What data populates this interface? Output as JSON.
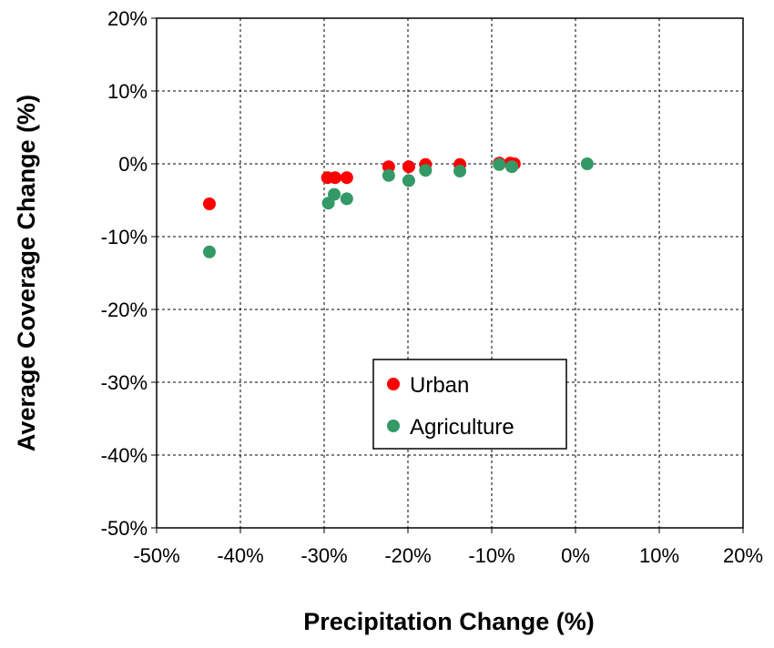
{
  "chart_data": {
    "type": "scatter",
    "x_label": "Precipitation Change (%)",
    "y_label": "Average Coverage Change (%)",
    "xlim": [
      -50,
      20
    ],
    "ylim": [
      -50,
      20
    ],
    "xticks": [
      {
        "value": -50,
        "label": "-50%"
      },
      {
        "value": -40,
        "label": "-40%"
      },
      {
        "value": -30,
        "label": "-30%"
      },
      {
        "value": -20,
        "label": "-20%"
      },
      {
        "value": -10,
        "label": "-10%"
      },
      {
        "value": 0,
        "label": "0%"
      },
      {
        "value": 10,
        "label": "10%"
      },
      {
        "value": 20,
        "label": "20%"
      }
    ],
    "yticks": [
      {
        "value": -50,
        "label": "-50%"
      },
      {
        "value": -40,
        "label": "-40%"
      },
      {
        "value": -30,
        "label": "-30%"
      },
      {
        "value": -20,
        "label": "-20%"
      },
      {
        "value": -10,
        "label": "-10%"
      },
      {
        "value": 0,
        "label": "0%"
      },
      {
        "value": 10,
        "label": "10%"
      },
      {
        "value": 20,
        "label": "20%"
      }
    ],
    "grid": true,
    "legend": "center",
    "series": [
      {
        "name": "Urban",
        "color": "#ff0000",
        "x": [
          -43.7,
          -29.6,
          -28.7,
          -27.3,
          -22.3,
          -19.9,
          -17.9,
          -13.8,
          -9.1,
          -7.8,
          -7.3
        ],
        "values": [
          -5.5,
          -1.9,
          -1.9,
          -1.9,
          -0.4,
          -0.4,
          -0.1,
          -0.1,
          0.1,
          0.1,
          0
        ]
      },
      {
        "name": "Agriculture",
        "color": "#339966",
        "x": [
          -43.7,
          -29.5,
          -28.8,
          -27.3,
          -22.3,
          -19.9,
          -17.9,
          -13.8,
          -9.1,
          -7.6,
          1.4
        ],
        "values": [
          -12.1,
          -5.4,
          -4.2,
          -4.8,
          -1.6,
          -2.3,
          -0.9,
          -1.0,
          -0.1,
          -0.4,
          0
        ]
      }
    ]
  }
}
